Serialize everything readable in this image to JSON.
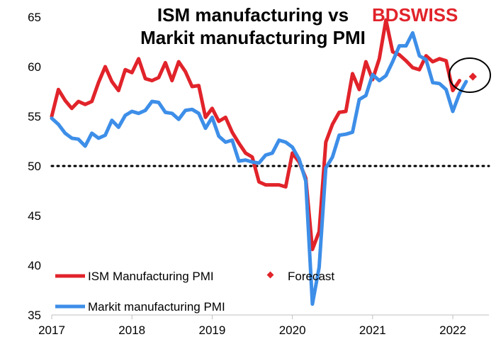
{
  "brand": {
    "part1": "BD",
    "part2": "SWISS",
    "color": "#e1232a"
  },
  "chart_data": {
    "type": "line",
    "title": [
      "ISM manufacturing vs",
      "Markit manufacturing PMI"
    ],
    "xlabel": "",
    "ylabel": "",
    "ylim": [
      35,
      65
    ],
    "xlim": [
      2017.0,
      2022.45
    ],
    "yticks": [
      35,
      40,
      45,
      50,
      55,
      60,
      65
    ],
    "xticks": [
      {
        "value": 2017,
        "label": "2017"
      },
      {
        "value": 2018,
        "label": "2018"
      },
      {
        "value": 2019,
        "label": "2019"
      },
      {
        "value": 2020,
        "label": "2020"
      },
      {
        "value": 2021,
        "label": "2021"
      },
      {
        "value": 2022,
        "label": "2022"
      }
    ],
    "reference_line": {
      "y": 50,
      "style": "dotted",
      "color": "#000000"
    },
    "x_start": 2017.0,
    "x_step": 0.08333,
    "series": [
      {
        "name": "ISM Manufacturing PMI",
        "color": "#e1232a",
        "values": [
          55.0,
          57.7,
          56.6,
          55.8,
          56.5,
          56.2,
          56.5,
          58.4,
          60.0,
          58.5,
          57.6,
          59.7,
          59.4,
          60.8,
          58.8,
          58.6,
          58.9,
          60.4,
          58.6,
          60.5,
          59.5,
          58.0,
          58.1,
          54.9,
          55.8,
          54.5,
          54.9,
          53.4,
          52.3,
          51.3,
          50.9,
          48.4,
          48.1,
          48.1,
          48.1,
          47.9,
          51.3,
          50.4,
          48.8,
          41.6,
          43.4,
          52.4,
          54.2,
          55.4,
          55.5,
          59.3,
          57.7,
          60.5,
          58.7,
          60.8,
          64.7,
          61.5,
          61.2,
          60.6,
          59.9,
          59.7,
          61.1,
          60.5,
          60.8,
          60.6,
          57.6,
          58.6
        ]
      },
      {
        "name": "Markit manufacturing PMI",
        "color": "#3d8ee8",
        "values": [
          54.8,
          54.2,
          53.3,
          52.8,
          52.7,
          52.0,
          53.3,
          52.8,
          53.1,
          54.6,
          53.9,
          55.1,
          55.5,
          55.3,
          55.6,
          56.5,
          56.4,
          55.4,
          55.3,
          54.7,
          55.6,
          55.7,
          55.3,
          53.8,
          54.9,
          53.0,
          52.4,
          52.6,
          50.5,
          50.6,
          50.4,
          50.3,
          51.1,
          51.3,
          52.6,
          52.4,
          51.9,
          50.7,
          48.5,
          36.1,
          39.8,
          49.8,
          50.9,
          53.1,
          53.2,
          53.4,
          56.7,
          57.1,
          59.2,
          58.6,
          59.1,
          60.5,
          62.1,
          62.1,
          63.4,
          61.1,
          60.7,
          58.4,
          58.3,
          57.7,
          55.5,
          57.3,
          58.5
        ]
      }
    ],
    "forecast": {
      "name": "Forecast",
      "x": 2022.25,
      "y": 59.0,
      "color": "#e1232a"
    },
    "legend": {
      "position": "bottom-left",
      "items": [
        "ISM Manufacturing PMI",
        "Forecast",
        "Markit manufacturing PMI"
      ]
    }
  }
}
